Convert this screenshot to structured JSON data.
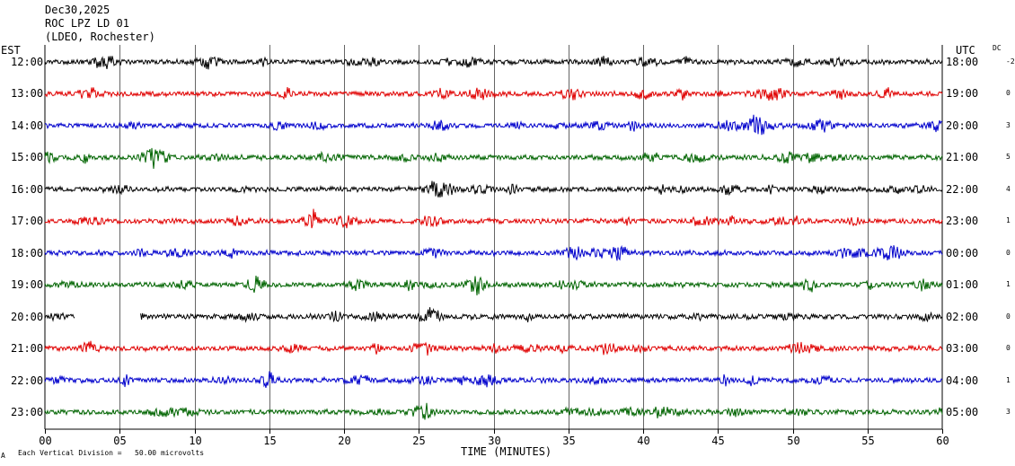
{
  "header": {
    "date": "Dec30,2025",
    "station": "ROC LPZ LD 01",
    "network": "(LDEO, Rochester)"
  },
  "left_zone_label": "EST",
  "right_zone_label": "UTC",
  "dc_label": "DC",
  "footer": {
    "scale_note": "Each Vertical Division =   50.00 microvolts",
    "corner_mark": "A"
  },
  "colors": {
    "black": "#000000",
    "red": "#e00000",
    "blue": "#0000cc",
    "green": "#006400",
    "grid": "#000000"
  },
  "chart_data": {
    "type": "line",
    "title": "ROC LPZ LD 01",
    "xlabel": "TIME (MINUTES)",
    "ylabel": "",
    "xlim": [
      0,
      60
    ],
    "x_ticks": [
      "00",
      "05",
      "10",
      "15",
      "20",
      "25",
      "30",
      "35",
      "40",
      "45",
      "50",
      "55",
      "60"
    ],
    "rows": [
      {
        "est": "12:00",
        "utc": "18:00",
        "dc": "-2",
        "color": "black",
        "gap": null
      },
      {
        "est": "13:00",
        "utc": "19:00",
        "dc": "0",
        "color": "red",
        "gap": null
      },
      {
        "est": "14:00",
        "utc": "20:00",
        "dc": "3",
        "color": "blue",
        "gap": null
      },
      {
        "est": "15:00",
        "utc": "21:00",
        "dc": "5",
        "color": "green",
        "gap": null
      },
      {
        "est": "16:00",
        "utc": "22:00",
        "dc": "4",
        "color": "black",
        "gap": null
      },
      {
        "est": "17:00",
        "utc": "23:00",
        "dc": "1",
        "color": "red",
        "gap": null
      },
      {
        "est": "18:00",
        "utc": "00:00",
        "dc": "0",
        "color": "blue",
        "gap": null
      },
      {
        "est": "19:00",
        "utc": "01:00",
        "dc": "1",
        "color": "green",
        "gap": null
      },
      {
        "est": "20:00",
        "utc": "02:00",
        "dc": "0",
        "color": "black",
        "gap": [
          2,
          6.4
        ]
      },
      {
        "est": "21:00",
        "utc": "03:00",
        "dc": "0",
        "color": "red",
        "gap": null
      },
      {
        "est": "22:00",
        "utc": "04:00",
        "dc": "1",
        "color": "blue",
        "gap": null
      },
      {
        "est": "23:00",
        "utc": "05:00",
        "dc": "3",
        "color": "green",
        "gap": null
      }
    ]
  }
}
